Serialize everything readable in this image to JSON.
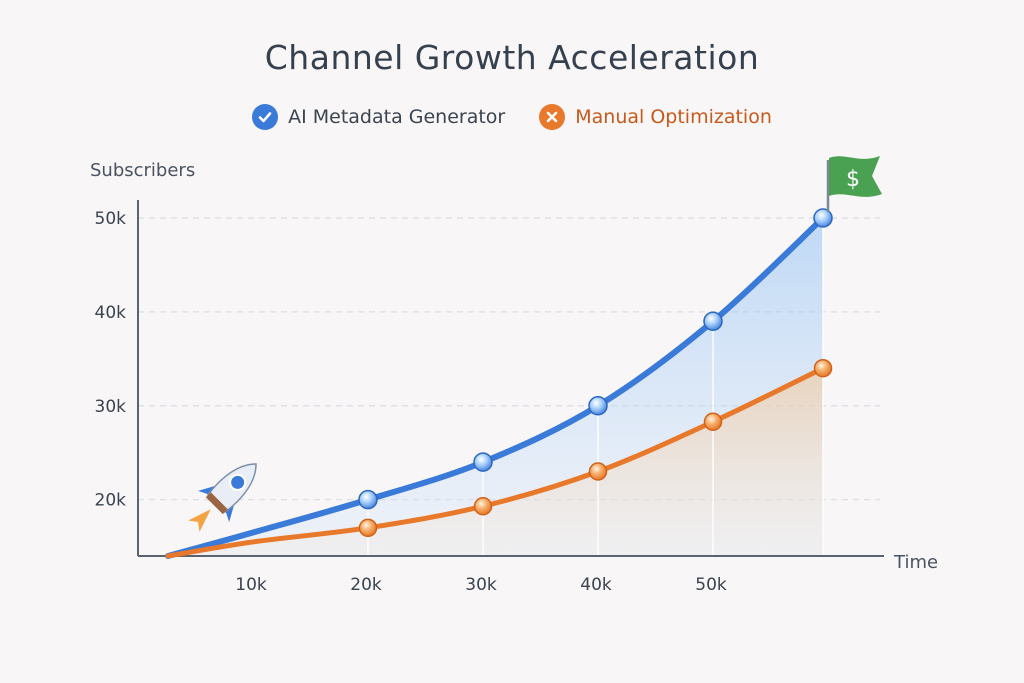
{
  "chart_data": {
    "type": "line",
    "title": "Channel Growth Acceleration",
    "ylabel": "Subscribers",
    "xlabel": "Time",
    "x_ticks": [
      "10k",
      "20k",
      "30k",
      "40k",
      "50k"
    ],
    "y_ticks": [
      "20k",
      "30k",
      "40k",
      "50k"
    ],
    "y_tick_values": [
      20,
      30,
      40,
      50
    ],
    "ylim": [
      14,
      50
    ],
    "x": [
      0,
      1,
      2,
      3,
      4,
      5,
      6
    ],
    "x_tick_positions": [
      1,
      2,
      3,
      4,
      5
    ],
    "series": [
      {
        "name": "AI Metadata Generator",
        "color": "#3a7ad8",
        "values": [
          14,
          16.5,
          20,
          24,
          30,
          39,
          50
        ],
        "marker_indices": [
          2,
          3,
          4,
          5,
          6
        ]
      },
      {
        "name": "Manual Optimization",
        "color": "#e8782a",
        "values": [
          14,
          15.5,
          17,
          19.3,
          23,
          28.3,
          34
        ],
        "marker_indices": [
          2,
          3,
          4,
          5,
          6
        ]
      }
    ]
  },
  "legend": {
    "items": [
      {
        "label": "AI Metadata Generator",
        "color": "#3a7ad8",
        "text_color": "#3b4552",
        "icon": "check-icon"
      },
      {
        "label": "Manual Optimization",
        "color": "#e8782a",
        "text_color": "#c8591a",
        "icon": "cross-icon"
      }
    ]
  },
  "decorations": {
    "flag_symbol": "$",
    "flag_color": "#4aa152",
    "rocket_icon": "rocket-icon"
  }
}
